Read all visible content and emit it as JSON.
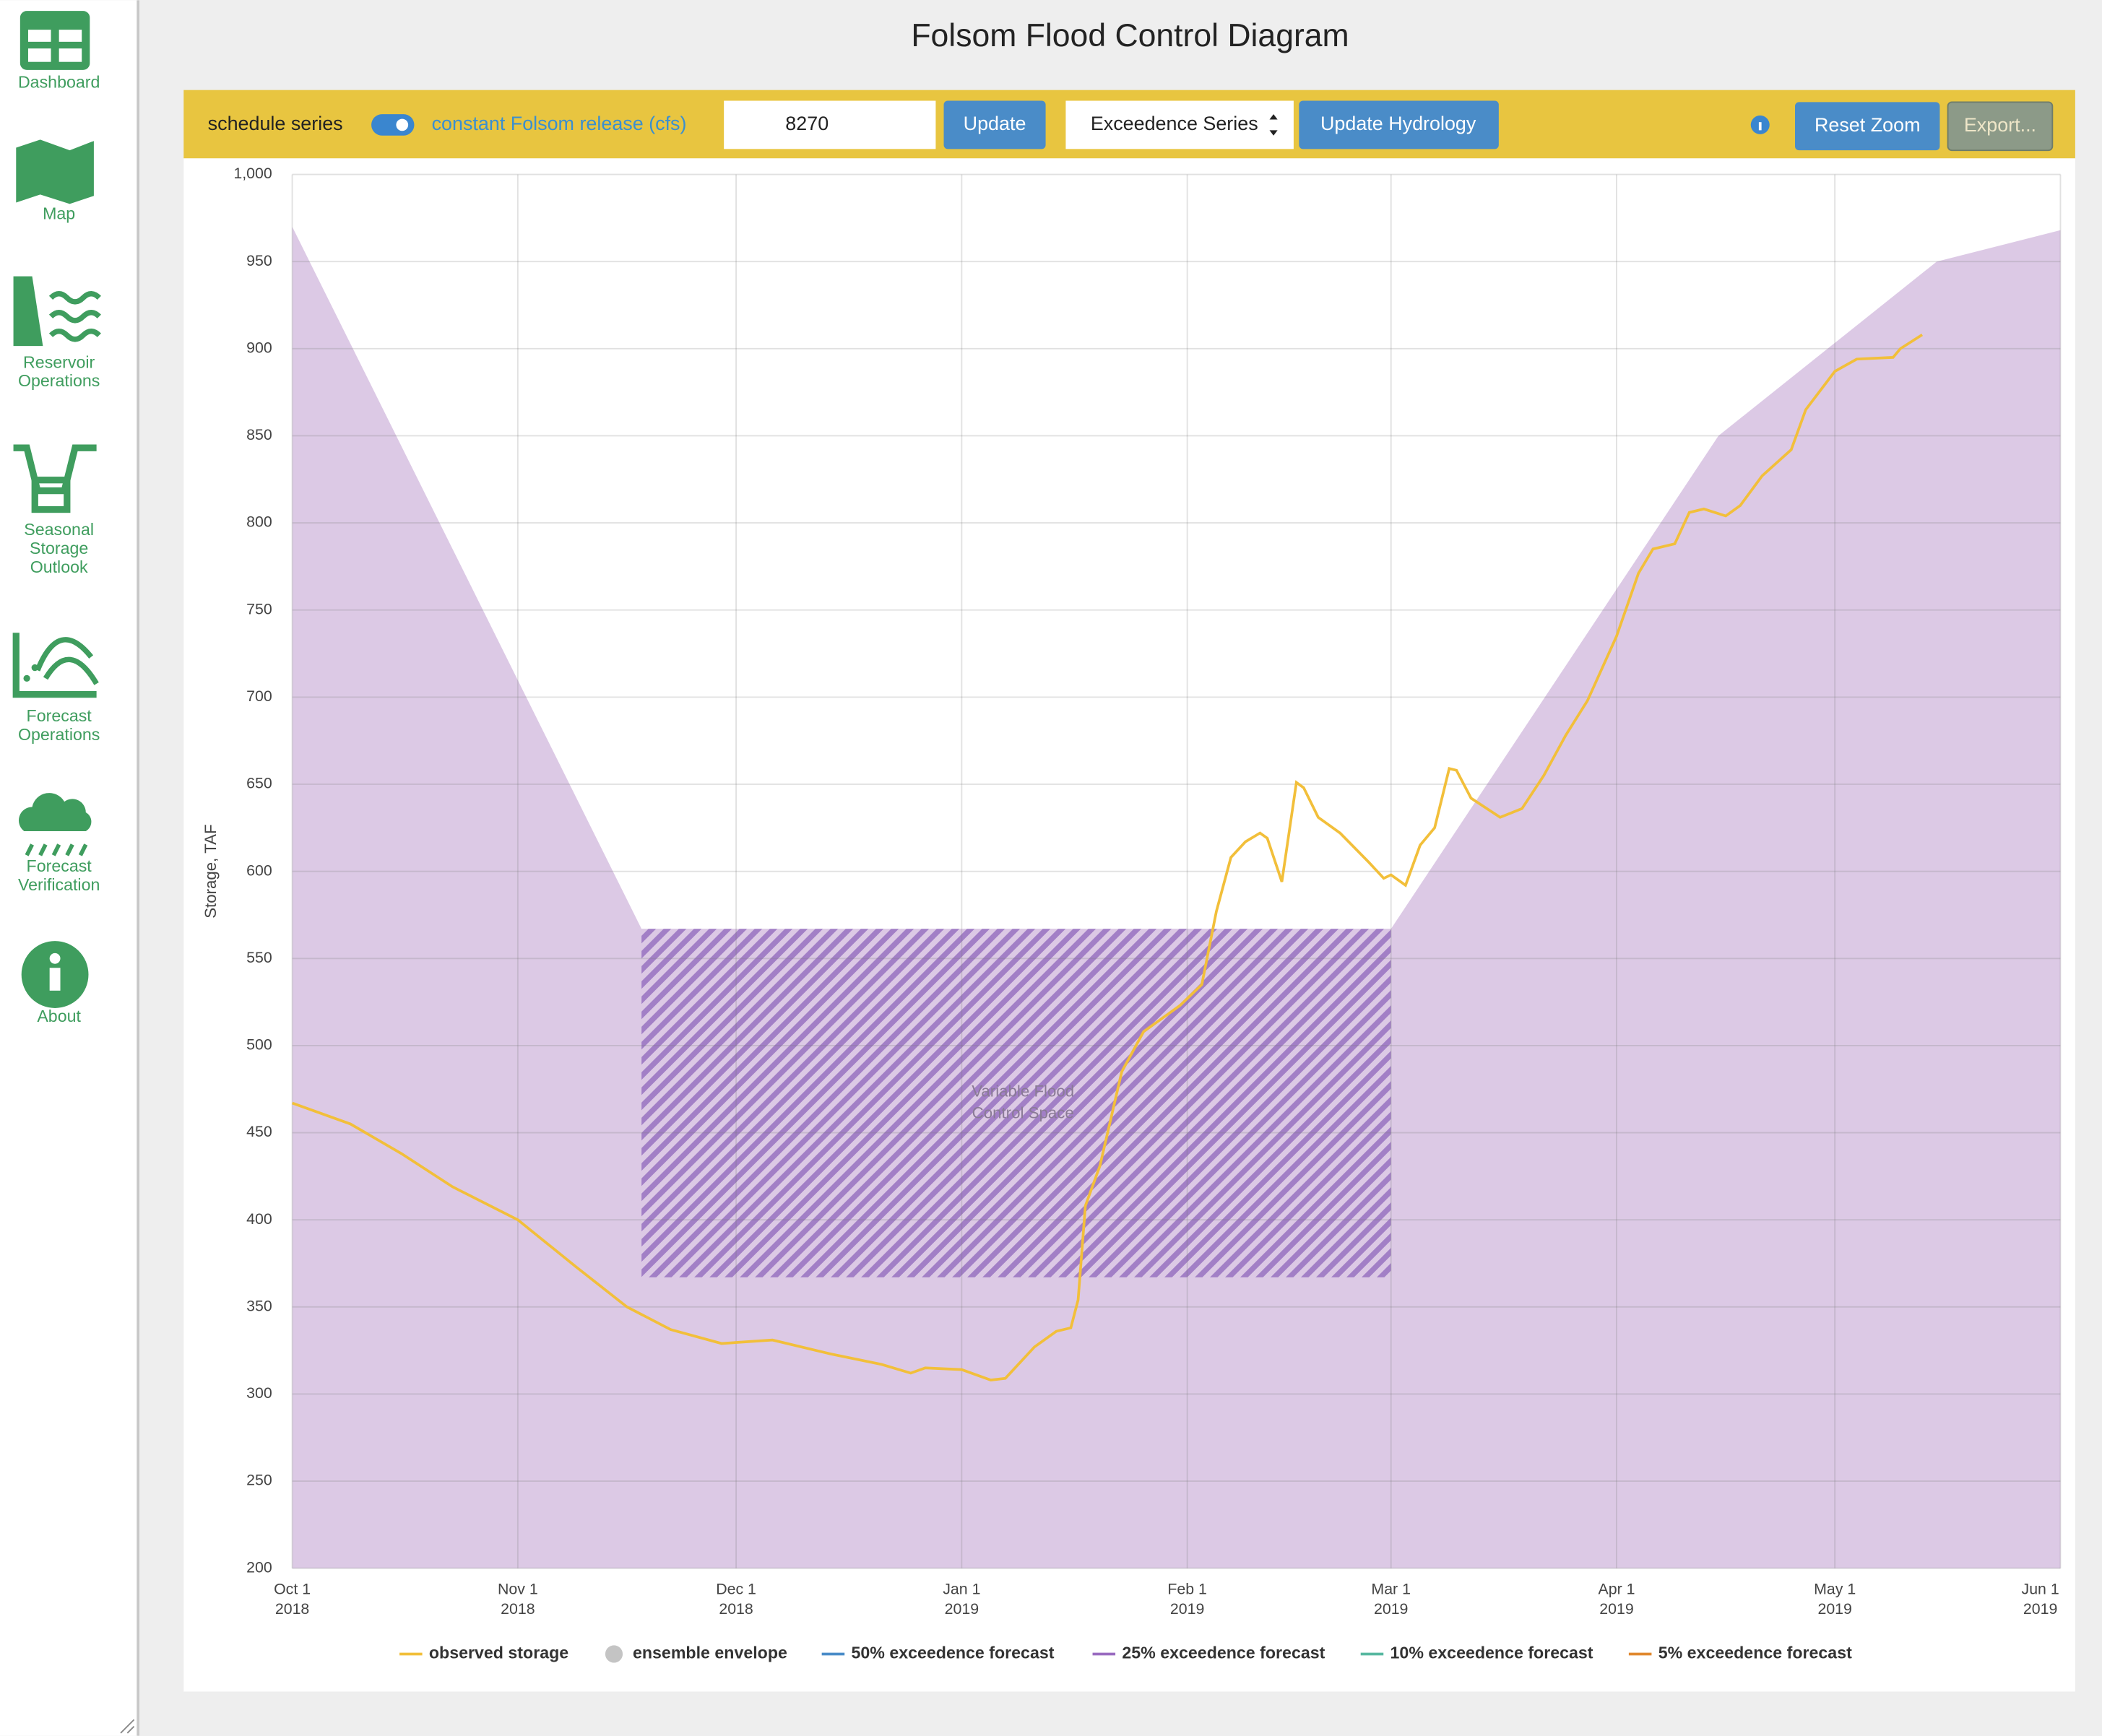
{
  "sidebar": {
    "items": [
      {
        "label": [
          "Dashboard"
        ]
      },
      {
        "label": [
          "Map"
        ]
      },
      {
        "label": [
          "Reservoir",
          "Operations"
        ]
      },
      {
        "label": [
          "Seasonal",
          "Storage",
          "Outlook"
        ]
      },
      {
        "label": [
          "Forecast",
          "Operations"
        ]
      },
      {
        "label": [
          "Forecast",
          "Verification"
        ]
      },
      {
        "label": [
          "About"
        ]
      }
    ]
  },
  "toolbar": {
    "schedule_label": "schedule series",
    "release_label": "constant Folsom release (cfs)",
    "release_value": 8270,
    "update": "Update",
    "select": "Exceedence Series",
    "update_hydrology": "Update Hydrology",
    "reset_zoom": "Reset Zoom",
    "export": "Export..."
  },
  "chart_data": {
    "type": "line",
    "title": "Folsom Flood Control Diagram",
    "y_label": "Storage, TAF",
    "xlim": [
      "2018-10-01",
      "2019-06-01"
    ],
    "xticks": [
      {
        "value": "2018-10-01",
        "label": [
          "Oct 1",
          "2018"
        ]
      },
      {
        "value": "2018-11-01",
        "label": [
          "Nov 1",
          "2018"
        ]
      },
      {
        "value": "2018-12-01",
        "label": [
          "Dec 1",
          "2018"
        ]
      },
      {
        "value": "2019-01-01",
        "label": [
          "Jan 1",
          "2019"
        ]
      },
      {
        "value": "2019-02-01",
        "label": [
          "Feb 1",
          "2019"
        ]
      },
      {
        "value": "2019-03-01",
        "label": [
          "Mar 1",
          "2019"
        ]
      },
      {
        "value": "2019-04-01",
        "label": [
          "Apr 1",
          "2019"
        ]
      },
      {
        "value": "2019-05-01",
        "label": [
          "May 1",
          "2019"
        ]
      },
      {
        "value": "2019-06-01",
        "label": [
          "Jun 1",
          "2019"
        ]
      }
    ],
    "ylim": [
      200,
      1000
    ],
    "yticks": [
      200,
      250,
      300,
      350,
      400,
      450,
      500,
      550,
      600,
      650,
      700,
      750,
      800,
      850,
      900,
      950,
      {
        "value": 1000,
        "label": "1,000"
      }
    ],
    "grid": true,
    "flood_control": {
      "color": "#dcc9e5",
      "x": [
        "2018-10-01",
        "2018-11-18",
        "2019-03-01",
        "2019-04-15",
        "2019-05-15",
        "2019-06-01"
      ],
      "values": [
        970,
        567,
        567,
        850,
        950,
        968
      ]
    },
    "variable_space": {
      "label": [
        "Variable Flood",
        "Control Space"
      ],
      "color": "#a27fc6",
      "x": [
        "2018-11-18",
        "2019-03-01"
      ],
      "low": 367,
      "high": 567
    },
    "series": [
      {
        "name": "observed storage",
        "color": "#f2bf3a",
        "x": [
          "2018-10-01",
          "2018-10-09",
          "2018-10-16",
          "2018-10-23",
          "2018-11-01",
          "2018-11-09",
          "2018-11-16",
          "2018-11-22",
          "2018-11-29",
          "2018-12-06",
          "2018-12-14",
          "2018-12-21",
          "2018-12-25",
          "2018-12-27",
          "2019-01-01",
          "2019-01-05",
          "2019-01-07",
          "2019-01-11",
          "2019-01-14",
          "2019-01-16",
          "2019-01-17",
          "2019-01-18",
          "2019-01-20",
          "2019-01-23",
          "2019-01-26",
          "2019-01-31",
          "2019-02-03",
          "2019-02-05",
          "2019-02-07",
          "2019-02-09",
          "2019-02-11",
          "2019-02-12",
          "2019-02-14",
          "2019-02-16",
          "2019-02-17",
          "2019-02-19",
          "2019-02-22",
          "2019-02-26",
          "2019-02-28",
          "2019-03-01",
          "2019-03-03",
          "2019-03-05",
          "2019-03-07",
          "2019-03-09",
          "2019-03-10",
          "2019-03-12",
          "2019-03-16",
          "2019-03-19",
          "2019-03-22",
          "2019-03-25",
          "2019-03-28",
          "2019-04-01",
          "2019-04-04",
          "2019-04-06",
          "2019-04-09",
          "2019-04-11",
          "2019-04-13",
          "2019-04-16",
          "2019-04-18",
          "2019-04-21",
          "2019-04-25",
          "2019-04-27",
          "2019-05-01",
          "2019-05-04",
          "2019-05-09",
          "2019-05-10",
          "2019-05-13"
        ],
        "values": [
          467,
          455,
          438,
          419,
          400,
          373,
          350,
          337,
          329,
          331,
          323,
          317,
          312,
          315,
          314,
          308,
          309,
          327,
          336,
          338,
          354,
          408,
          431,
          485,
          508,
          523,
          535,
          577,
          608,
          617,
          622,
          619,
          594,
          651,
          648,
          631,
          622,
          605,
          596,
          598,
          592,
          615,
          625,
          659,
          658,
          642,
          631,
          636,
          655,
          678,
          698,
          735,
          771,
          785,
          788,
          806,
          808,
          804,
          810,
          827,
          842,
          865,
          887,
          894,
          895,
          900,
          908
        ]
      }
    ],
    "legend": [
      {
        "name": "observed storage",
        "color": "#f2bf3a",
        "symbol": "line"
      },
      {
        "name": "ensemble envelope",
        "color": "#c4c4c4",
        "symbol": "circle"
      },
      {
        "name": "50% exceedence forecast",
        "color": "#4a8cc8",
        "symbol": "line"
      },
      {
        "name": "25% exceedence forecast",
        "color": "#9a6cc0",
        "symbol": "line"
      },
      {
        "name": "10% exceedence forecast",
        "color": "#58b8a0",
        "symbol": "line"
      },
      {
        "name": "5% exceedence forecast",
        "color": "#e0892f",
        "symbol": "line"
      }
    ]
  }
}
